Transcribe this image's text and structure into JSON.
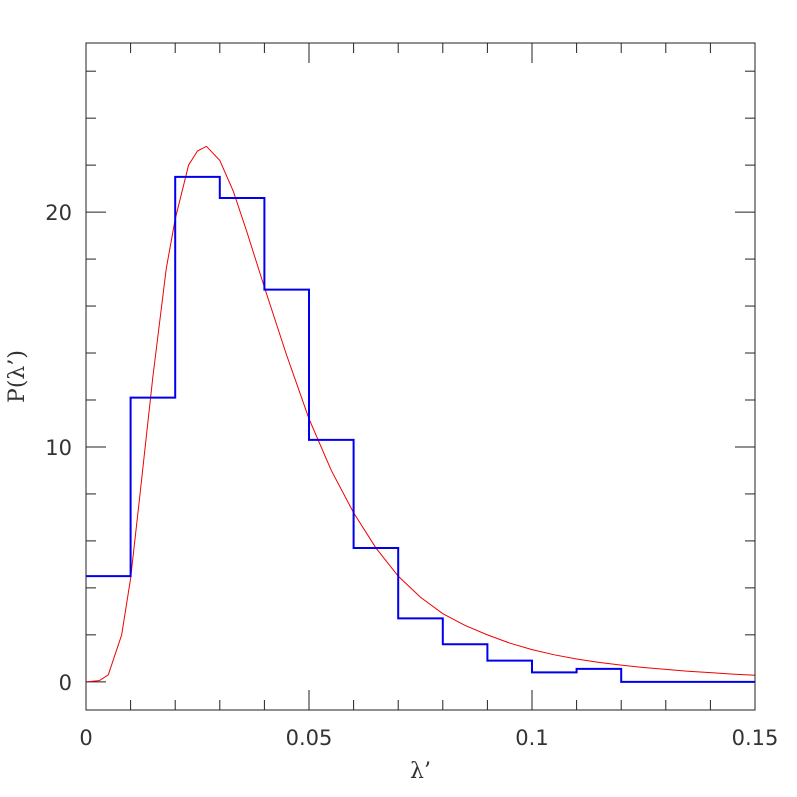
{
  "chart_data": {
    "type": "histogram-with-curve",
    "xlabel": "λ’",
    "ylabel": "P(λ’)",
    "xlim": [
      0,
      0.15
    ],
    "ylim": [
      -1.2,
      27.2
    ],
    "x_ticks": [
      "0",
      "0.05",
      "0.1",
      "0.15"
    ],
    "x_tick_values": [
      0,
      0.05,
      0.1,
      0.15
    ],
    "y_ticks": [
      "0",
      "10",
      "20"
    ],
    "y_tick_values": [
      0,
      10,
      20
    ],
    "grid": false,
    "series": [
      {
        "kind": "histogram",
        "color": "#0000ee",
        "bin_edges": [
          0,
          0.01,
          0.02,
          0.03,
          0.04,
          0.05,
          0.06,
          0.07,
          0.08,
          0.09,
          0.1,
          0.11,
          0.12,
          0.13,
          0.14,
          0.15
        ],
        "values": [
          4.5,
          12.1,
          21.5,
          20.6,
          16.7,
          10.3,
          5.7,
          2.7,
          1.6,
          0.9,
          0.4,
          0.55,
          0.0,
          0.0,
          0.0
        ]
      },
      {
        "kind": "curve",
        "color": "#ee0000",
        "x": [
          0.0,
          0.003,
          0.005,
          0.008,
          0.01,
          0.012,
          0.015,
          0.018,
          0.02,
          0.023,
          0.025,
          0.027,
          0.03,
          0.033,
          0.036,
          0.04,
          0.045,
          0.05,
          0.055,
          0.06,
          0.065,
          0.07,
          0.075,
          0.08,
          0.085,
          0.09,
          0.095,
          0.1,
          0.105,
          0.11,
          0.115,
          0.12,
          0.125,
          0.13,
          0.135,
          0.14,
          0.145,
          0.15
        ],
        "y": [
          0.0,
          0.05,
          0.3,
          2.0,
          4.4,
          7.8,
          13.0,
          17.6,
          19.7,
          22.0,
          22.6,
          22.8,
          22.2,
          20.9,
          19.2,
          16.8,
          13.9,
          11.2,
          9.0,
          7.2,
          5.7,
          4.5,
          3.6,
          2.9,
          2.4,
          2.0,
          1.65,
          1.37,
          1.15,
          0.97,
          0.83,
          0.71,
          0.61,
          0.53,
          0.45,
          0.39,
          0.33,
          0.28
        ]
      }
    ]
  }
}
